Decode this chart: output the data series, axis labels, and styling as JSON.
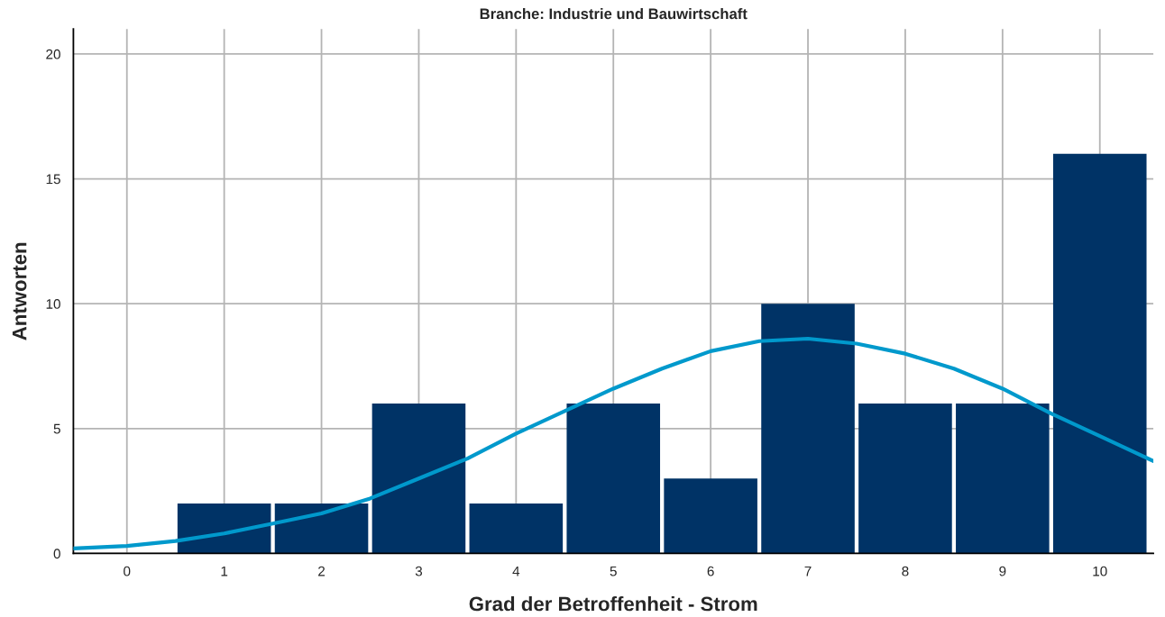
{
  "chart_data": {
    "type": "histogram",
    "title": "Branche: Industrie und Bauwirtschaft",
    "xlabel": "Grad der Betroffenheit - Strom",
    "ylabel": "Antworten",
    "bins": [
      -0.5,
      0.5,
      1.5,
      2.5,
      3.5,
      4.5,
      5.5,
      6.5,
      7.5,
      8.5,
      9.5,
      10.5
    ],
    "values": [
      0,
      2,
      2,
      6,
      2,
      6,
      3,
      10,
      6,
      6,
      16
    ],
    "color": "#003366",
    "series": [
      {
        "type": "line",
        "color": "#0099cc",
        "x": [
          -0.55,
          0,
          0.5,
          1,
          1.5,
          2,
          2.5,
          3,
          3.5,
          4,
          4.5,
          5,
          5.5,
          6,
          6.5,
          7,
          7.5,
          8,
          8.5,
          9,
          9.5,
          10,
          10.55
        ],
        "values": [
          0.2,
          0.3,
          0.5,
          0.8,
          1.2,
          1.6,
          2.2,
          3.0,
          3.8,
          4.8,
          5.7,
          6.6,
          7.4,
          8.1,
          8.5,
          8.6,
          8.4,
          8.0,
          7.4,
          6.6,
          5.6,
          4.7,
          3.7
        ]
      }
    ],
    "xlim": [
      -0.55,
      10.55
    ],
    "xticks": [
      0,
      1,
      2,
      3,
      4,
      5,
      6,
      7,
      8,
      9,
      10
    ],
    "ylim": [
      0,
      21
    ],
    "yticks": [
      0,
      5,
      10,
      15,
      20
    ],
    "grid": true,
    "legend": false,
    "line_style": "solid",
    "marker": "none"
  }
}
